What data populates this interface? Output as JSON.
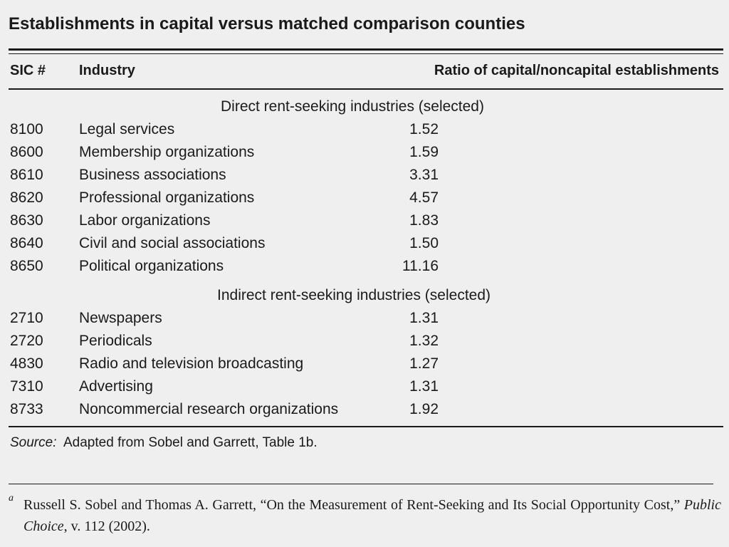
{
  "title": "Establishments in capital versus matched comparison counties",
  "columns": {
    "sic": "SIC #",
    "industry": "Industry",
    "ratio": "Ratio of capital/noncapital establishments"
  },
  "sections": [
    {
      "label": "Direct rent-seeking industries (selected)",
      "rows": [
        {
          "sic": "8100",
          "industry": "Legal services",
          "ratio": "1.52"
        },
        {
          "sic": "8600",
          "industry": "Membership organizations",
          "ratio": "1.59"
        },
        {
          "sic": "8610",
          "industry": "Business associations",
          "ratio": "3.31"
        },
        {
          "sic": "8620",
          "industry": "Professional organizations",
          "ratio": "4.57"
        },
        {
          "sic": "8630",
          "industry": "Labor organizations",
          "ratio": "1.83"
        },
        {
          "sic": "8640",
          "industry": "Civil and social associations",
          "ratio": "1.50"
        },
        {
          "sic": "8650",
          "industry": "Political organizations",
          "ratio": "11.16"
        }
      ]
    },
    {
      "label": "Indirect rent-seeking industries (selected)",
      "rows": [
        {
          "sic": "2710",
          "industry": "Newspapers",
          "ratio": "1.31"
        },
        {
          "sic": "2720",
          "industry": "Periodicals",
          "ratio": "1.32"
        },
        {
          "sic": "4830",
          "industry": "Radio and television broadcasting",
          "ratio": "1.27"
        },
        {
          "sic": "7310",
          "industry": "Advertising",
          "ratio": "1.31"
        },
        {
          "sic": "8733",
          "industry": "Noncommercial research organizations",
          "ratio": "1.92"
        }
      ]
    }
  ],
  "source": {
    "label": "Source:",
    "text": "Adapted from Sobel and Garrett, Table 1b."
  },
  "footnote": {
    "mark": "a",
    "before": "Russell S. Sobel and Thomas A. Garrett, “On the Measurement of Rent-Seeking and Its Social Opportunity Cost,” ",
    "journal": "Public Choice",
    "after": ", v. 112 (2002)."
  }
}
